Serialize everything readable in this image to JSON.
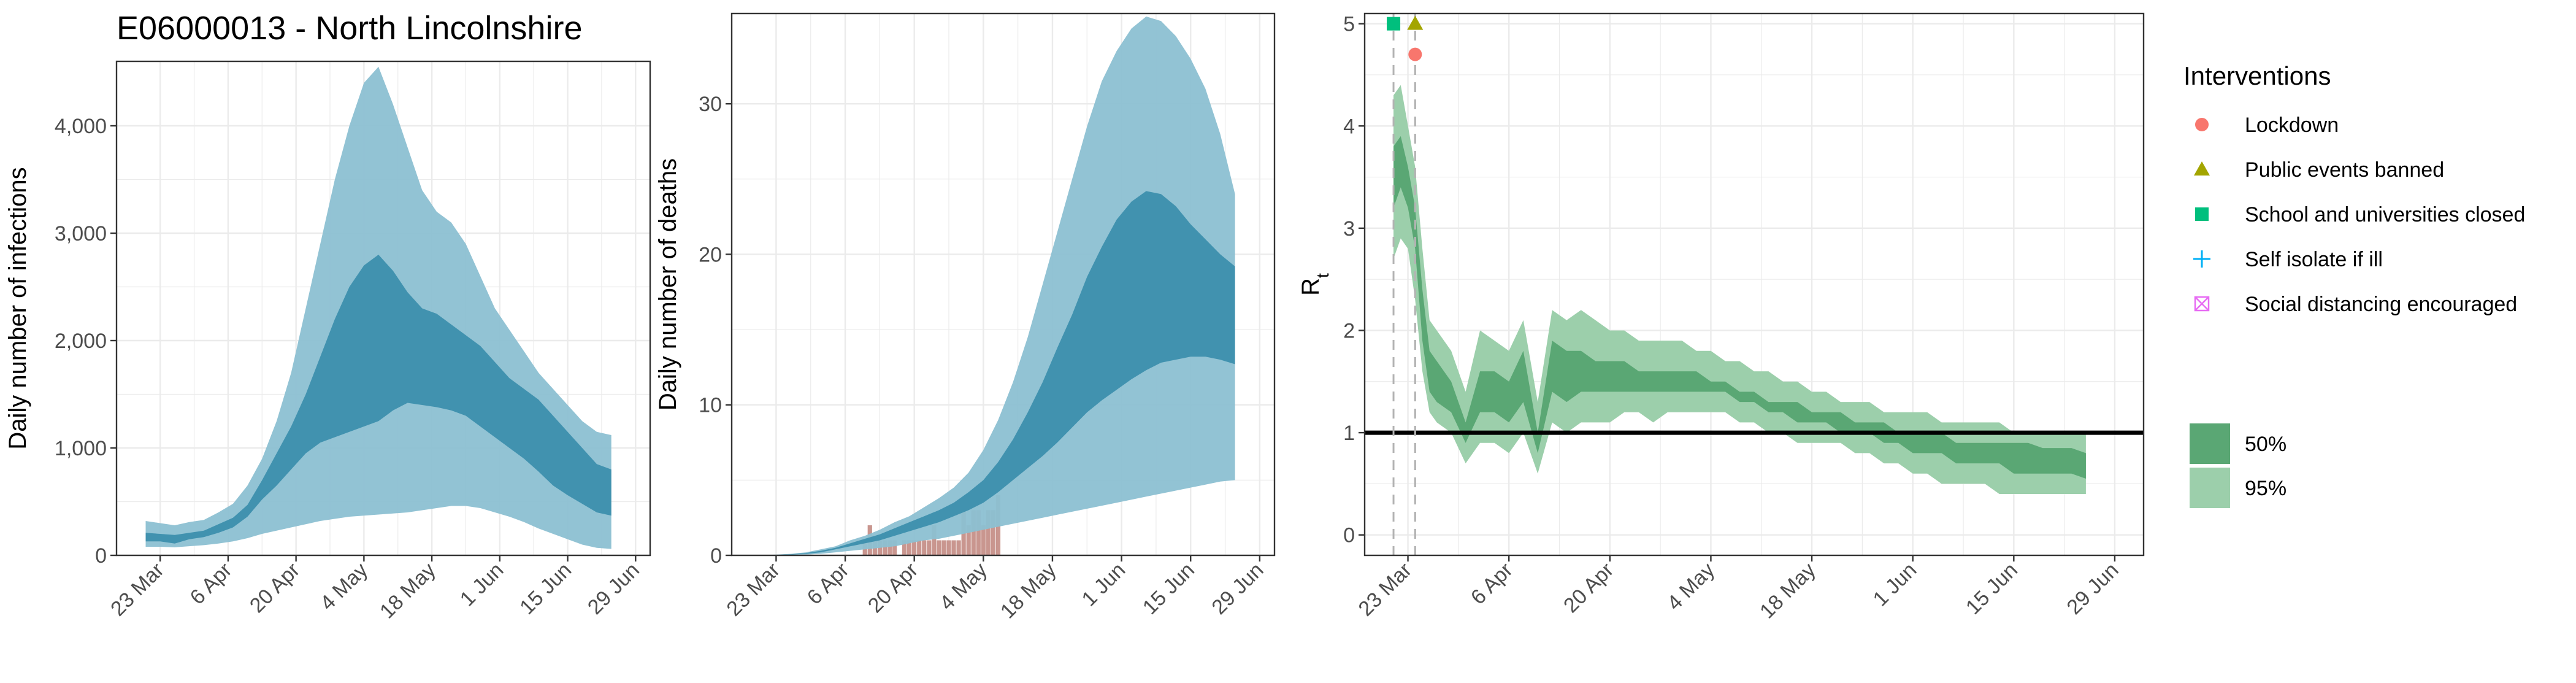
{
  "title": "E06000013 - North Lincolnshire",
  "colors": {
    "infections_band_95": "#8cc0d2",
    "infections_band_50": "#3d8fad",
    "infections_median": "#2d7d9e",
    "deaths_observed": "#c9968f",
    "rt_band_95": "#9ccfab",
    "rt_band_50": "#5aa774",
    "lockdown": "#f8766d",
    "public_events_banned": "#a3a500",
    "schools_closed": "#00bf7d",
    "self_isolate": "#00b0f6",
    "social_distancing": "#e76bf3",
    "grid": "#ebebeb",
    "threshold_line": "#000000"
  },
  "legend": {
    "title": "Interventions",
    "items": [
      {
        "label": "Lockdown",
        "shape": "circle",
        "color": "#f8766d"
      },
      {
        "label": "Public events banned",
        "shape": "triangle",
        "color": "#a3a500"
      },
      {
        "label": "School and universities closed",
        "shape": "square",
        "color": "#00bf7d"
      },
      {
        "label": "Self isolate if ill",
        "shape": "plus",
        "color": "#00b0f6"
      },
      {
        "label": "Social distancing encouraged",
        "shape": "boxed-x",
        "color": "#e76bf3"
      }
    ],
    "bands": [
      {
        "label": "50%",
        "color": "#5aa774"
      },
      {
        "label": "95%",
        "color": "#9ccfab"
      }
    ]
  },
  "chart_data": [
    {
      "type": "area",
      "id": "infections",
      "ylabel": "Daily number of infections",
      "xlabel": "",
      "ylim": [
        0,
        4600
      ],
      "yticks": [
        0,
        1000,
        2000,
        3000,
        4000
      ],
      "ytick_labels": [
        "0",
        "1,000",
        "2,000",
        "3,000",
        "4,000"
      ],
      "xticks": [
        "23 Mar",
        "6 Apr",
        "20 Apr",
        "4 May",
        "18 May",
        "1 Jun",
        "15 Jun",
        "29 Jun"
      ],
      "xlim_days": [
        -9,
        101
      ],
      "bands": [
        {
          "name": "95%",
          "day": [
            -3,
            0,
            3,
            6,
            9,
            12,
            15,
            18,
            21,
            24,
            27,
            30,
            33,
            36,
            39,
            42,
            45,
            48,
            51,
            54,
            57,
            60,
            63,
            66,
            69,
            72,
            75,
            78,
            81,
            84,
            87,
            90,
            93
          ],
          "low": [
            80,
            80,
            75,
            85,
            95,
            110,
            130,
            160,
            200,
            230,
            260,
            290,
            320,
            340,
            360,
            370,
            380,
            390,
            400,
            420,
            440,
            460,
            460,
            440,
            400,
            360,
            310,
            250,
            200,
            150,
            100,
            70,
            60
          ],
          "high": [
            320,
            300,
            280,
            310,
            330,
            400,
            480,
            650,
            900,
            1250,
            1700,
            2300,
            2900,
            3500,
            4000,
            4400,
            4550,
            4200,
            3800,
            3400,
            3200,
            3100,
            2900,
            2600,
            2300,
            2100,
            1900,
            1700,
            1550,
            1400,
            1250,
            1150,
            1120
          ]
        },
        {
          "name": "50%",
          "day": [
            -3,
            0,
            3,
            6,
            9,
            12,
            15,
            18,
            21,
            24,
            27,
            30,
            33,
            36,
            39,
            42,
            45,
            48,
            51,
            54,
            57,
            60,
            63,
            66,
            69,
            72,
            75,
            78,
            81,
            84,
            87,
            90,
            93
          ],
          "low": [
            130,
            130,
            110,
            150,
            170,
            210,
            260,
            360,
            520,
            650,
            800,
            950,
            1050,
            1100,
            1150,
            1200,
            1250,
            1350,
            1420,
            1400,
            1380,
            1350,
            1300,
            1200,
            1100,
            1000,
            900,
            780,
            650,
            560,
            480,
            400,
            370
          ],
          "high": [
            210,
            200,
            190,
            210,
            230,
            290,
            350,
            470,
            700,
            950,
            1200,
            1500,
            1850,
            2200,
            2500,
            2700,
            2800,
            2650,
            2450,
            2300,
            2250,
            2150,
            2050,
            1950,
            1800,
            1650,
            1550,
            1450,
            1300,
            1150,
            1000,
            850,
            800
          ]
        }
      ]
    },
    {
      "type": "area",
      "id": "deaths",
      "ylabel": "Daily number of deaths",
      "xlabel": "",
      "ylim": [
        0,
        36
      ],
      "yticks": [
        0,
        10,
        20,
        30
      ],
      "ytick_labels": [
        "0",
        "10",
        "20",
        "30"
      ],
      "xticks": [
        "23 Mar",
        "6 Apr",
        "20 Apr",
        "4 May",
        "18 May",
        "1 Jun",
        "15 Jun",
        "29 Jun"
      ],
      "xlim_days": [
        -9,
        101
      ],
      "bands": [
        {
          "name": "95%",
          "day": [
            -3,
            0,
            3,
            6,
            9,
            12,
            15,
            18,
            21,
            24,
            27,
            30,
            33,
            36,
            39,
            42,
            45,
            48,
            51,
            54,
            57,
            60,
            63,
            66,
            69,
            72,
            75,
            78,
            81,
            84,
            87,
            90,
            93
          ],
          "low": [
            0,
            0,
            0.02,
            0.05,
            0.1,
            0.2,
            0.3,
            0.4,
            0.5,
            0.6,
            0.8,
            1.0,
            1.1,
            1.3,
            1.5,
            1.7,
            1.9,
            2.1,
            2.3,
            2.5,
            2.7,
            2.9,
            3.1,
            3.3,
            3.5,
            3.7,
            3.9,
            4.1,
            4.3,
            4.5,
            4.7,
            4.9,
            5.0
          ],
          "high": [
            0,
            0.05,
            0.1,
            0.2,
            0.4,
            0.6,
            1.0,
            1.3,
            1.7,
            2.2,
            2.6,
            3.2,
            3.8,
            4.5,
            5.5,
            7.0,
            9.0,
            11.5,
            14.5,
            18.0,
            21.5,
            25.0,
            28.5,
            31.5,
            33.5,
            35.0,
            35.8,
            35.5,
            34.5,
            33.0,
            31.0,
            28.0,
            24.0
          ]
        },
        {
          "name": "50%",
          "day": [
            -3,
            0,
            3,
            6,
            9,
            12,
            15,
            18,
            21,
            24,
            27,
            30,
            33,
            36,
            39,
            42,
            45,
            48,
            51,
            54,
            57,
            60,
            63,
            66,
            69,
            72,
            75,
            78,
            81,
            84,
            87,
            90,
            93
          ],
          "low": [
            0,
            0.02,
            0.05,
            0.1,
            0.2,
            0.4,
            0.6,
            0.8,
            1.0,
            1.3,
            1.6,
            1.9,
            2.2,
            2.6,
            3.0,
            3.5,
            4.2,
            5.0,
            5.8,
            6.6,
            7.5,
            8.5,
            9.5,
            10.3,
            11.0,
            11.7,
            12.3,
            12.8,
            13.0,
            13.2,
            13.2,
            13.0,
            12.7
          ],
          "high": [
            0,
            0.03,
            0.07,
            0.15,
            0.3,
            0.5,
            0.8,
            1.1,
            1.4,
            1.8,
            2.2,
            2.6,
            3.0,
            3.5,
            4.2,
            5.0,
            6.2,
            7.7,
            9.5,
            11.5,
            13.8,
            16.0,
            18.5,
            20.5,
            22.3,
            23.5,
            24.2,
            24.0,
            23.2,
            22.0,
            21.0,
            20.0,
            19.2
          ]
        }
      ],
      "observed": {
        "name": "Observed deaths",
        "day": [
          18,
          19,
          20,
          21,
          22,
          23,
          24,
          25,
          26,
          27,
          28,
          29,
          30,
          31,
          32,
          33,
          34,
          35,
          36,
          37,
          38,
          39,
          40,
          41,
          42,
          43,
          44,
          45
        ],
        "values": [
          1,
          2,
          1,
          1,
          1,
          1,
          1,
          0,
          1,
          1,
          1,
          1,
          1,
          1,
          2,
          1,
          1,
          1,
          1,
          1,
          3,
          2,
          3,
          3,
          2,
          3,
          3,
          4
        ]
      }
    },
    {
      "type": "area",
      "id": "rt",
      "ylabel": "Rt",
      "xlabel": "",
      "ylim": [
        -0.2,
        5.1
      ],
      "yticks": [
        0,
        1,
        2,
        3,
        4,
        5
      ],
      "ytick_labels": [
        "0",
        "1",
        "2",
        "3",
        "4",
        "5"
      ],
      "xticks": [
        "23 Mar",
        "6 Apr",
        "20 Apr",
        "4 May",
        "18 May",
        "1 Jun",
        "15 Jun",
        "29 Jun"
      ],
      "xlim_days": [
        -6,
        102
      ],
      "threshold": 1,
      "bands": [
        {
          "name": "95%",
          "day": [
            -2,
            -1,
            0,
            1,
            2,
            3,
            4,
            6,
            8,
            10,
            12,
            14,
            16,
            18,
            20,
            22,
            24,
            26,
            28,
            30,
            32,
            34,
            36,
            38,
            40,
            42,
            44,
            46,
            48,
            50,
            52,
            54,
            56,
            58,
            60,
            62,
            64,
            66,
            68,
            70,
            72,
            74,
            76,
            78,
            80,
            82,
            84,
            86,
            88,
            90,
            92,
            94
          ],
          "low": [
            2.7,
            2.9,
            2.8,
            2.3,
            1.6,
            1.2,
            1.1,
            1.0,
            0.7,
            0.9,
            0.9,
            0.8,
            1.0,
            0.6,
            1.1,
            1.0,
            1.1,
            1.1,
            1.1,
            1.2,
            1.2,
            1.1,
            1.2,
            1.2,
            1.2,
            1.2,
            1.2,
            1.1,
            1.1,
            1.0,
            1.0,
            0.9,
            0.9,
            0.9,
            0.9,
            0.8,
            0.8,
            0.7,
            0.7,
            0.6,
            0.6,
            0.5,
            0.5,
            0.5,
            0.5,
            0.4,
            0.4,
            0.4,
            0.4,
            0.4,
            0.4,
            0.4
          ],
          "high": [
            4.3,
            4.4,
            4.0,
            3.6,
            2.8,
            2.1,
            2.0,
            1.8,
            1.4,
            2.0,
            1.9,
            1.8,
            2.1,
            1.3,
            2.2,
            2.1,
            2.2,
            2.1,
            2.0,
            2.0,
            1.9,
            1.9,
            1.9,
            1.9,
            1.8,
            1.8,
            1.7,
            1.7,
            1.6,
            1.6,
            1.5,
            1.5,
            1.4,
            1.4,
            1.3,
            1.3,
            1.3,
            1.2,
            1.2,
            1.2,
            1.2,
            1.1,
            1.1,
            1.1,
            1.1,
            1.1,
            1.0,
            1.0,
            1.0,
            1.0,
            1.0,
            1.0
          ]
        },
        {
          "name": "50%",
          "day": [
            -2,
            -1,
            0,
            1,
            2,
            3,
            4,
            6,
            8,
            10,
            12,
            14,
            16,
            18,
            20,
            22,
            24,
            26,
            28,
            30,
            32,
            34,
            36,
            38,
            40,
            42,
            44,
            46,
            48,
            50,
            52,
            54,
            56,
            58,
            60,
            62,
            64,
            66,
            68,
            70,
            72,
            74,
            76,
            78,
            80,
            82,
            84,
            86,
            88,
            90,
            92,
            94
          ],
          "low": [
            3.2,
            3.4,
            3.2,
            2.8,
            1.9,
            1.4,
            1.3,
            1.2,
            0.9,
            1.2,
            1.2,
            1.1,
            1.3,
            0.8,
            1.4,
            1.3,
            1.4,
            1.4,
            1.4,
            1.4,
            1.4,
            1.4,
            1.4,
            1.4,
            1.4,
            1.4,
            1.4,
            1.3,
            1.3,
            1.2,
            1.2,
            1.1,
            1.1,
            1.1,
            1.0,
            1.0,
            1.0,
            0.9,
            0.9,
            0.8,
            0.8,
            0.8,
            0.7,
            0.7,
            0.7,
            0.7,
            0.6,
            0.6,
            0.6,
            0.6,
            0.6,
            0.55
          ],
          "high": [
            3.8,
            3.9,
            3.6,
            3.2,
            2.4,
            1.8,
            1.7,
            1.5,
            1.1,
            1.6,
            1.6,
            1.5,
            1.8,
            1.0,
            1.9,
            1.8,
            1.8,
            1.7,
            1.7,
            1.7,
            1.6,
            1.6,
            1.6,
            1.6,
            1.6,
            1.5,
            1.5,
            1.4,
            1.4,
            1.3,
            1.3,
            1.3,
            1.2,
            1.2,
            1.2,
            1.1,
            1.1,
            1.1,
            1.0,
            1.0,
            1.0,
            1.0,
            0.9,
            0.9,
            0.9,
            0.9,
            0.9,
            0.9,
            0.85,
            0.85,
            0.85,
            0.8
          ]
        }
      ],
      "interventions": [
        {
          "label": "School and universities closed",
          "day": -2,
          "value": 5.0,
          "shape": "square",
          "color": "#00bf7d"
        },
        {
          "label": "Public events banned",
          "day": 1,
          "value": 5.0,
          "shape": "triangle",
          "color": "#a3a500"
        },
        {
          "label": "Lockdown",
          "day": 1,
          "value": 4.7,
          "shape": "circle",
          "color": "#f8766d"
        }
      ]
    }
  ]
}
